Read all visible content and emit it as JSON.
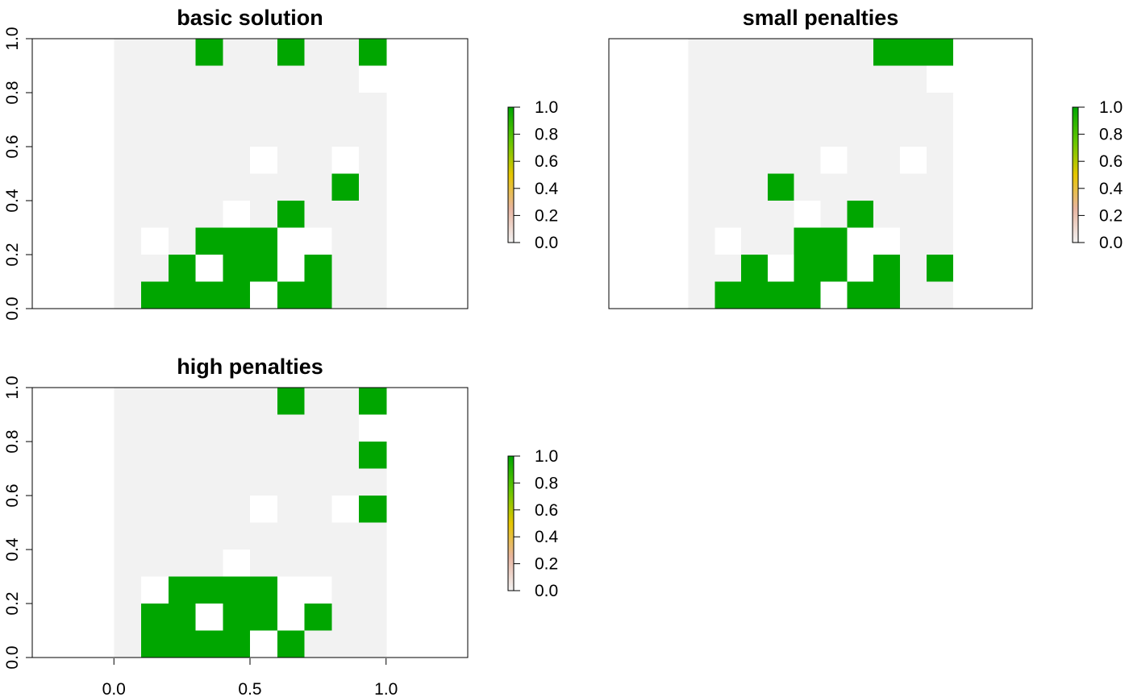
{
  "chart_data": [
    {
      "type": "heatmap",
      "title": "basic solution",
      "x": [
        0.05,
        0.15,
        0.25,
        0.35,
        0.45,
        0.55,
        0.65,
        0.75,
        0.85,
        0.95
      ],
      "y": [
        0.95,
        0.85,
        0.75,
        0.65,
        0.55,
        0.45,
        0.35,
        0.25,
        0.15,
        0.05
      ],
      "grid": [
        [
          0,
          0,
          0,
          1,
          0,
          0,
          1,
          0,
          0,
          1
        ],
        [
          0,
          0,
          0,
          0,
          0,
          0,
          0,
          0,
          0,
          null
        ],
        [
          0,
          0,
          0,
          0,
          0,
          0,
          0,
          0,
          0,
          0
        ],
        [
          0,
          0,
          0,
          0,
          0,
          0,
          0,
          0,
          0,
          0
        ],
        [
          0,
          0,
          0,
          0,
          0,
          null,
          0,
          0,
          null,
          0
        ],
        [
          0,
          0,
          0,
          0,
          0,
          0,
          0,
          0,
          1,
          0
        ],
        [
          0,
          0,
          0,
          0,
          null,
          0,
          1,
          0,
          0,
          0
        ],
        [
          0,
          null,
          0,
          1,
          1,
          1,
          null,
          null,
          0,
          0
        ],
        [
          0,
          0,
          1,
          null,
          1,
          1,
          null,
          1,
          0,
          0
        ],
        [
          0,
          1,
          1,
          1,
          1,
          null,
          1,
          1,
          0,
          0
        ]
      ],
      "xlim": [
        -0.3,
        1.3
      ],
      "ylim": [
        0,
        1
      ],
      "yticks": [
        "0.0",
        "0.2",
        "0.4",
        "0.6",
        "0.8",
        "1.0"
      ],
      "xticks": [],
      "legend": "colorbar right",
      "colorbar_ticks": [
        "0.0",
        "0.2",
        "0.4",
        "0.6",
        "0.8",
        "1.0"
      ]
    },
    {
      "type": "heatmap",
      "title": "small penalties",
      "x": [
        0.05,
        0.15,
        0.25,
        0.35,
        0.45,
        0.55,
        0.65,
        0.75,
        0.85,
        0.95
      ],
      "y": [
        0.95,
        0.85,
        0.75,
        0.65,
        0.55,
        0.45,
        0.35,
        0.25,
        0.15,
        0.05
      ],
      "grid": [
        [
          0,
          0,
          0,
          0,
          0,
          0,
          0,
          1,
          1,
          1
        ],
        [
          0,
          0,
          0,
          0,
          0,
          0,
          0,
          0,
          0,
          null
        ],
        [
          0,
          0,
          0,
          0,
          0,
          0,
          0,
          0,
          0,
          0
        ],
        [
          0,
          0,
          0,
          0,
          0,
          0,
          0,
          0,
          0,
          0
        ],
        [
          0,
          0,
          0,
          0,
          0,
          null,
          0,
          0,
          null,
          0
        ],
        [
          0,
          0,
          0,
          1,
          0,
          0,
          0,
          0,
          0,
          0
        ],
        [
          0,
          0,
          0,
          0,
          null,
          0,
          1,
          0,
          0,
          0
        ],
        [
          0,
          null,
          0,
          0,
          1,
          1,
          null,
          null,
          0,
          0
        ],
        [
          0,
          0,
          1,
          null,
          1,
          1,
          null,
          1,
          0,
          1
        ],
        [
          0,
          1,
          1,
          1,
          1,
          null,
          1,
          1,
          0,
          0
        ]
      ],
      "xlim": [
        -0.3,
        1.3
      ],
      "ylim": [
        0,
        1
      ],
      "yticks": [],
      "xticks": [],
      "legend": "colorbar right",
      "colorbar_ticks": [
        "0.0",
        "0.2",
        "0.4",
        "0.6",
        "0.8",
        "1.0"
      ]
    },
    {
      "type": "heatmap",
      "title": "high penalties",
      "x": [
        0.05,
        0.15,
        0.25,
        0.35,
        0.45,
        0.55,
        0.65,
        0.75,
        0.85,
        0.95
      ],
      "y": [
        0.95,
        0.85,
        0.75,
        0.65,
        0.55,
        0.45,
        0.35,
        0.25,
        0.15,
        0.05
      ],
      "grid": [
        [
          0,
          0,
          0,
          0,
          0,
          0,
          1,
          0,
          0,
          1
        ],
        [
          0,
          0,
          0,
          0,
          0,
          0,
          0,
          0,
          0,
          null
        ],
        [
          0,
          0,
          0,
          0,
          0,
          0,
          0,
          0,
          0,
          1
        ],
        [
          0,
          0,
          0,
          0,
          0,
          0,
          0,
          0,
          0,
          0
        ],
        [
          0,
          0,
          0,
          0,
          0,
          null,
          0,
          0,
          null,
          1
        ],
        [
          0,
          0,
          0,
          0,
          0,
          0,
          0,
          0,
          0,
          0
        ],
        [
          0,
          0,
          0,
          0,
          null,
          0,
          0,
          0,
          0,
          0
        ],
        [
          0,
          null,
          1,
          1,
          1,
          1,
          null,
          null,
          0,
          0
        ],
        [
          0,
          1,
          1,
          null,
          1,
          1,
          null,
          1,
          0,
          0
        ],
        [
          0,
          1,
          1,
          1,
          1,
          null,
          1,
          0,
          0,
          0
        ]
      ],
      "xlim": [
        -0.3,
        1.3
      ],
      "ylim": [
        0,
        1
      ],
      "yticks": [
        "0.0",
        "0.2",
        "0.4",
        "0.6",
        "0.8",
        "1.0"
      ],
      "xticks": [
        "0.0",
        "0.5",
        "1.0"
      ],
      "legend": "colorbar right",
      "colorbar_ticks": [
        "0.0",
        "0.2",
        "0.4",
        "0.6",
        "0.8",
        "1.0"
      ]
    }
  ],
  "colors": {
    "selected": "#00a600",
    "not_selected": "#f2f2f2",
    "na": "#ffffff",
    "colorbar_stops": [
      "#f2f2f2",
      "#e8b5a0",
      "#e6c600",
      "#63c600",
      "#00a600"
    ]
  }
}
